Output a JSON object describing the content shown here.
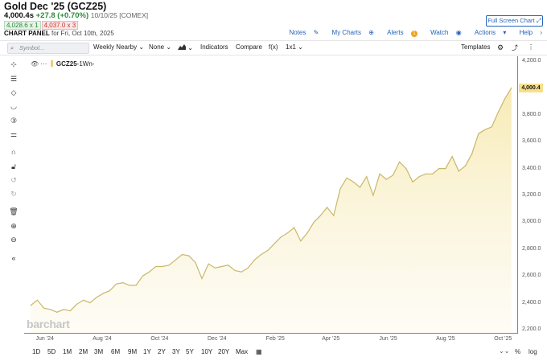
{
  "header": {
    "title": "Gold Dec '25 (GCZ25)",
    "last": "4,000.4s",
    "change": "+27.8 (+0.70%)",
    "timestamp": "10/10/25 [COMEX]",
    "bid": "4,028.6 x 1",
    "ask": "4,037.0 x 3",
    "panel_label": "CHART PANEL",
    "panel_date": "for Fri, Oct 10th, 2025",
    "fullscreen_label": "Full Screen Chart",
    "links": {
      "notes": "Notes",
      "my_charts": "My Charts",
      "alerts": "Alerts",
      "alerts_count": "1",
      "watch": "Watch",
      "actions": "Actions",
      "help": "Help"
    }
  },
  "toolbar": {
    "search_placeholder": "Symbol...",
    "aggregation": "Weekly Nearby",
    "overlay": "None",
    "chart_type_icon": "mountain-chart-icon",
    "indicators": "Indicators",
    "compare": "Compare",
    "fx": "f(x)",
    "layout": "1x1",
    "templates": "Templates",
    "colors": {
      "accent": "#2563b8",
      "up": "#2a8a3a",
      "down": "#c0392b",
      "series": "#c9b76a"
    }
  },
  "left_tools": [
    "crosshair-icon",
    "lines-icon",
    "shapes-icon",
    "magnet-curve-icon",
    "counter-icon",
    "settings-sliders-icon",
    "magnet-icon",
    "lock-icon",
    "undo-icon",
    "redo-icon",
    "trash-icon",
    "zoom-in-icon",
    "zoom-out-icon",
    "collapse-icon"
  ],
  "legend": {
    "symbol": "GCZ25",
    "interval": "-1Wn-"
  },
  "watermark": "barchart",
  "last_price_tag": "4,000.4",
  "periods": [
    "1D",
    "5D",
    "1M",
    "2M",
    "3M",
    "6M",
    "9M",
    "1Y",
    "2Y",
    "3Y",
    "5Y",
    "10Y",
    "20Y",
    "Max"
  ],
  "bottom_right": {
    "percent": "%",
    "log": "log"
  },
  "chart_data": {
    "type": "area",
    "ytick_labels": [
      "4,200.0",
      "4,000.0",
      "3,800.0",
      "3,600.0",
      "3,400.0",
      "3,200.0",
      "3,000.0",
      "2,800.0",
      "2,600.0",
      "2,400.0",
      "2,200.0"
    ],
    "ylim": [
      2200,
      4200
    ],
    "xtick_labels": [
      "Jun '24",
      "Aug '24",
      "Oct '24",
      "Dec '24",
      "Feb '25",
      "Apr '25",
      "Jun '25",
      "Aug '25",
      "Oct '25"
    ],
    "x": [
      "2024-05-17",
      "2024-05-24",
      "2024-05-31",
      "2024-06-07",
      "2024-06-14",
      "2024-06-21",
      "2024-06-28",
      "2024-07-05",
      "2024-07-12",
      "2024-07-19",
      "2024-07-26",
      "2024-08-02",
      "2024-08-09",
      "2024-08-16",
      "2024-08-23",
      "2024-08-30",
      "2024-09-06",
      "2024-09-13",
      "2024-09-20",
      "2024-09-27",
      "2024-10-04",
      "2024-10-11",
      "2024-10-18",
      "2024-10-25",
      "2024-11-01",
      "2024-11-08",
      "2024-11-15",
      "2024-11-22",
      "2024-11-29",
      "2024-12-06",
      "2024-12-13",
      "2024-12-20",
      "2024-12-27",
      "2025-01-03",
      "2025-01-10",
      "2025-01-17",
      "2025-01-24",
      "2025-01-31",
      "2025-02-07",
      "2025-02-14",
      "2025-02-21",
      "2025-02-28",
      "2025-03-07",
      "2025-03-14",
      "2025-03-21",
      "2025-03-28",
      "2025-04-04",
      "2025-04-11",
      "2025-04-18",
      "2025-04-25",
      "2025-05-02",
      "2025-05-09",
      "2025-05-16",
      "2025-05-23",
      "2025-05-30",
      "2025-06-06",
      "2025-06-13",
      "2025-06-20",
      "2025-06-27",
      "2025-07-04",
      "2025-07-11",
      "2025-07-18",
      "2025-07-25",
      "2025-08-01",
      "2025-08-08",
      "2025-08-15",
      "2025-08-22",
      "2025-08-29",
      "2025-09-05",
      "2025-09-12",
      "2025-09-19",
      "2025-09-26",
      "2025-10-03",
      "2025-10-10"
    ],
    "series": [
      {
        "values": [
          2380,
          2420,
          2360,
          2350,
          2330,
          2350,
          2340,
          2390,
          2420,
          2400,
          2440,
          2470,
          2490,
          2540,
          2550,
          2530,
          2530,
          2600,
          2630,
          2670,
          2670,
          2680,
          2720,
          2760,
          2750,
          2700,
          2580,
          2690,
          2660,
          2670,
          2680,
          2640,
          2630,
          2660,
          2720,
          2760,
          2790,
          2840,
          2890,
          2920,
          2960,
          2860,
          2920,
          3000,
          3050,
          3110,
          3050,
          3250,
          3330,
          3300,
          3260,
          3340,
          3200,
          3360,
          3320,
          3350,
          3450,
          3400,
          3300,
          3340,
          3360,
          3360,
          3400,
          3400,
          3490,
          3380,
          3420,
          3510,
          3660,
          3690,
          3710,
          3820,
          3920,
          4000.4
        ]
      }
    ]
  }
}
